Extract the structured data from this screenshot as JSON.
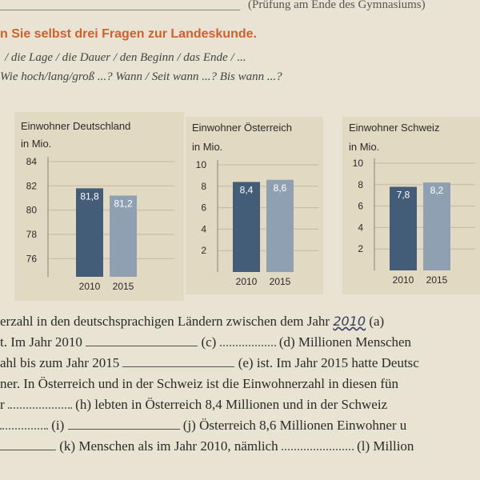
{
  "top": {
    "exam_note": "(Prüfung am Ende des Gymnasiums)"
  },
  "heading": "n Sie selbst drei Fragen zur Landeskunde.",
  "hint1": "/ die Lage / die Dauer / den Beginn / das Ende / ...",
  "hint2": "Wie hoch/lang/groß ...? Wann / Seit wann ...? Bis wann ...?",
  "colors": {
    "bar2010": "#435d78",
    "bar2015": "#8ea0b2",
    "heading": "#d0612c"
  },
  "chart_data": [
    {
      "type": "bar",
      "title": "Einwohner Deutschland",
      "ylabel": "in Mio.",
      "categories": [
        "2010",
        "2015"
      ],
      "values": [
        81.8,
        81.2
      ],
      "value_labels": [
        "81,8",
        "81,2"
      ],
      "yticks": [
        76,
        78,
        80,
        82,
        84
      ],
      "ylim": [
        74.5,
        84
      ],
      "grid": true
    },
    {
      "type": "bar",
      "title": "Einwohner Österreich",
      "ylabel": "in Mio.",
      "categories": [
        "2010",
        "2015"
      ],
      "values": [
        8.4,
        8.6
      ],
      "value_labels": [
        "8,4",
        "8,6"
      ],
      "yticks": [
        2,
        4,
        6,
        8,
        10
      ],
      "ylim": [
        0,
        10
      ],
      "grid": true
    },
    {
      "type": "bar",
      "title": "Einwohner Schweiz",
      "ylabel": "in Mio.",
      "categories": [
        "2010",
        "2015"
      ],
      "values": [
        7.8,
        8.2
      ],
      "value_labels": [
        "7,8",
        "8,2"
      ],
      "yticks": [
        2,
        4,
        6,
        8,
        10
      ],
      "ylim": [
        0,
        10
      ],
      "grid": true
    }
  ],
  "exercise": {
    "l1a": "erzahl in den deutschsprachigen Ländern zwischen dem Jahr",
    "l1_answer": "2010",
    "l1b": "(a)",
    "l2a": "t. Im Jahr 2010",
    "l2b": "(c)",
    "l2c": "(d) Millionen Menschen",
    "l3a": "ahl bis zum Jahr 2015",
    "l3b": "(e) ist. Im Jahr 2015 hatte Deutsc",
    "l4": "ner. In Österreich und in der Schweiz ist die Einwohnerzahl in diesen fün",
    "l5a": "r",
    "l5b": "(h) lebten in Österreich 8,4 Millionen und in der Schweiz",
    "l6a": "(i)",
    "l6b": "(j) Österreich 8,6 Millionen Einwohner u",
    "l7a": "(k) Menschen als im Jahr 2010, nämlich",
    "l7b": "(l) Million"
  }
}
